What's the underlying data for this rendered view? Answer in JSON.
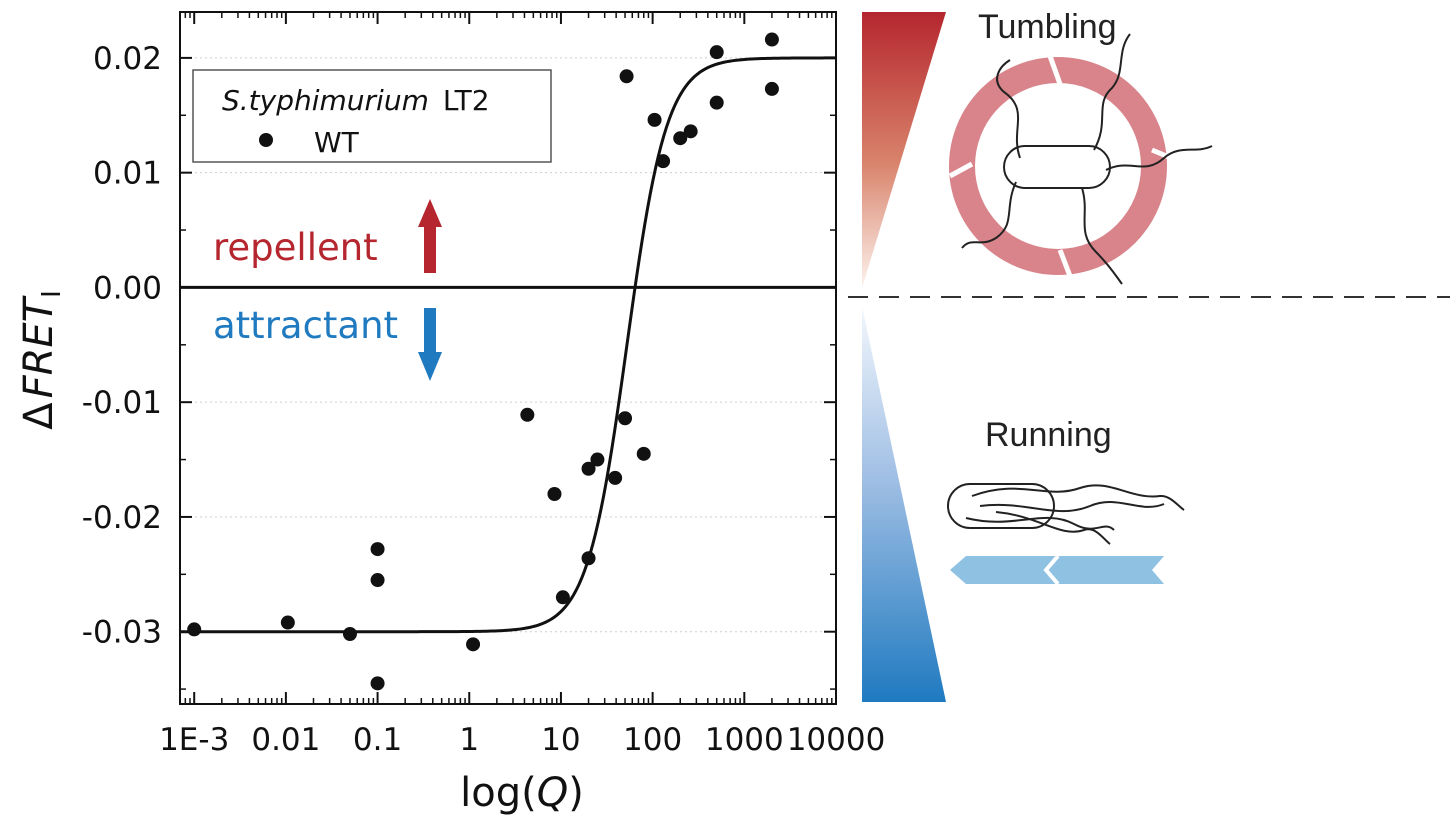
{
  "chart_data": {
    "type": "scatter",
    "x_scale": "log",
    "xlim": [
      0.0007,
      10000
    ],
    "ylim": [
      -0.0363,
      0.024
    ],
    "xlabel": {
      "prefix": "log(",
      "var": "Q",
      "suffix": ")"
    },
    "ylabel": {
      "delta": "Δ",
      "main": "FRET",
      "sub": "I"
    },
    "x_ticks": [
      {
        "value": 0.001,
        "label": "1E-3"
      },
      {
        "value": 0.01,
        "label": "0.01"
      },
      {
        "value": 0.1,
        "label": "0.1"
      },
      {
        "value": 1,
        "label": "1"
      },
      {
        "value": 10,
        "label": "10"
      },
      {
        "value": 100,
        "label": "100"
      },
      {
        "value": 1000,
        "label": "1000"
      },
      {
        "value": 10000,
        "label": "10000"
      }
    ],
    "y_ticks": [
      {
        "value": 0.02,
        "label": "0.02"
      },
      {
        "value": 0.01,
        "label": "0.01"
      },
      {
        "value": 0.0,
        "label": "0.00"
      },
      {
        "value": -0.01,
        "label": "-0.01"
      },
      {
        "value": -0.02,
        "label": "-0.02"
      },
      {
        "value": -0.03,
        "label": "-0.03"
      }
    ],
    "grid": "horizontal-dotted",
    "legend": {
      "placement": "top-left",
      "title_italic": "S.typhimurium",
      "title_rest": "LT2",
      "entry": "WT"
    },
    "series": [
      {
        "name": "WT",
        "points": [
          [
            0.001,
            -0.0298
          ],
          [
            0.0105,
            -0.0292
          ],
          [
            0.05,
            -0.0302
          ],
          [
            0.1,
            -0.0228
          ],
          [
            0.1,
            -0.0255
          ],
          [
            0.1,
            -0.0345
          ],
          [
            1.1,
            -0.0311
          ],
          [
            4.3,
            -0.0111
          ],
          [
            8.5,
            -0.018
          ],
          [
            10.5,
            -0.027
          ],
          [
            20,
            -0.0236
          ],
          [
            20,
            -0.0158
          ],
          [
            25,
            -0.015
          ],
          [
            39,
            -0.0166
          ],
          [
            50,
            -0.0114
          ],
          [
            52,
            0.0184
          ],
          [
            80,
            -0.0145
          ],
          [
            105,
            0.0146
          ],
          [
            130,
            0.011
          ],
          [
            200,
            0.013
          ],
          [
            260,
            0.0136
          ],
          [
            500,
            0.0205
          ],
          [
            500,
            0.0161
          ],
          [
            2000,
            0.0216
          ],
          [
            2000,
            0.0173
          ]
        ]
      }
    ],
    "fit": {
      "type": "sigmoid",
      "bottom": -0.03,
      "top": 0.02,
      "log_x50": 1.72,
      "slope": 2.0
    },
    "annotations": {
      "repellent": "repellent",
      "attractant": "attractant",
      "repellent_color": "#b5262e",
      "attractant_color": "#1f7ac0"
    }
  },
  "diagram": {
    "tumbling_label": "Tumbling",
    "running_label": "Running",
    "red_color": "#b5262e",
    "blue_color": "#1f7ac0",
    "ring_color": "#d9848a",
    "run_arrow_color": "#8fc1e3"
  }
}
